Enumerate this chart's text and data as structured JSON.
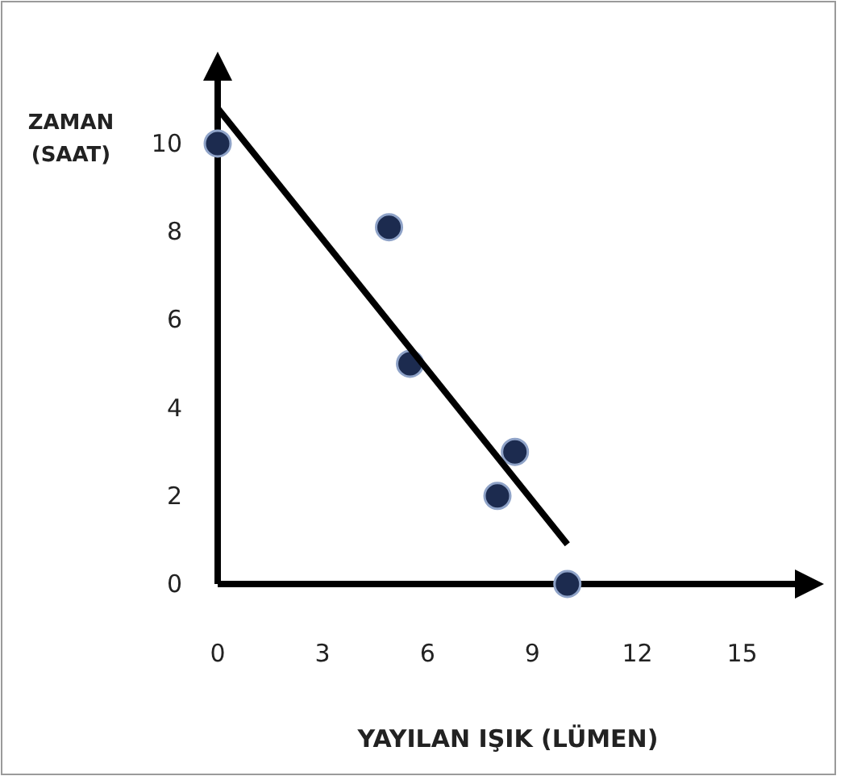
{
  "chart_data": {
    "type": "scatter",
    "xlabel": "YAYILAN IŞIK (LÜMEN)",
    "ylabel": "ZAMAN (SAAT)",
    "xlim": [
      0,
      16.6
    ],
    "ylim": [
      0,
      11.5
    ],
    "xticks": [
      0,
      3,
      6,
      9,
      12,
      15
    ],
    "yticks": [
      0,
      2,
      4,
      6,
      8,
      10
    ],
    "grid": false,
    "series": [
      {
        "color": "#1c2b4f",
        "marker": "circle",
        "x": [
          0,
          4.9,
          5.5,
          8,
          8.5,
          10
        ],
        "values": [
          10,
          8.1,
          5,
          2,
          3,
          0
        ]
      },
      {
        "type": "line",
        "color": "#000000",
        "x": [
          0,
          10
        ],
        "values": [
          10.8,
          0.9
        ],
        "line_style": "solid"
      }
    ]
  }
}
